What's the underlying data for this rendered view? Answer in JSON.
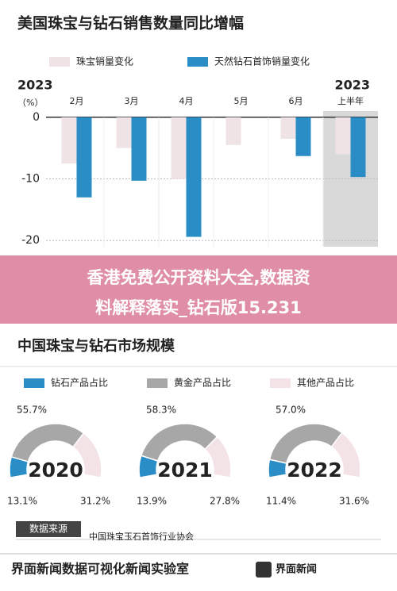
{
  "chart_data": [
    {
      "type": "bar",
      "title": "美国珠宝与钻石销售数量同比增幅",
      "unit_label": "（%）",
      "year_labels": [
        "2023",
        "2023"
      ],
      "categories": [
        "2月",
        "3月",
        "4月",
        "5月",
        "6月",
        "上半年"
      ],
      "series": [
        {
          "name": "珠宝销量变化",
          "color": "#efe3e5",
          "values": [
            -7.5,
            -5,
            -10,
            -4.5,
            -3.5,
            -6
          ]
        },
        {
          "name": "天然钻石首饰销量变化",
          "color": "#2a8dc5",
          "values": [
            -13,
            -10.3,
            -19.4,
            null,
            -6.3,
            -9.7
          ]
        }
      ],
      "ylim": [
        -21,
        1
      ],
      "yticks": [
        0,
        -10,
        -20
      ],
      "grid": true
    },
    {
      "type": "donut",
      "title": "中国珠宝与钻石市场规模",
      "categories": [
        "2020",
        "2021",
        "2022"
      ],
      "series": [
        {
          "name": "钻石产品占比",
          "color": "#2a8dc5",
          "values": [
            13.1,
            13.9,
            11.4
          ],
          "value_labels": [
            "13.1%",
            "13.9%",
            "11.4%"
          ]
        },
        {
          "name": "黄金产品占比",
          "color": "#a7a7a7",
          "values": [
            55.7,
            58.3,
            57.0
          ],
          "value_labels": [
            "55.7%",
            "58.3%",
            "57.0%"
          ]
        },
        {
          "name": "其他产品占比",
          "color": "#f4e3e6",
          "values": [
            31.2,
            27.8,
            31.6
          ],
          "value_labels": [
            "31.2%",
            "27.8%",
            "31.6%"
          ]
        }
      ],
      "source_label": "数据来源",
      "source": "中国珠宝玉石首饰行业协会"
    }
  ],
  "banner": {
    "line1": "香港免费公开资料大全,数据资",
    "line2": "料解释落实_钻石版15.231"
  },
  "footer": {
    "lab": "界面新闻数据可视化新闻实验室",
    "logo": "界面新闻"
  }
}
